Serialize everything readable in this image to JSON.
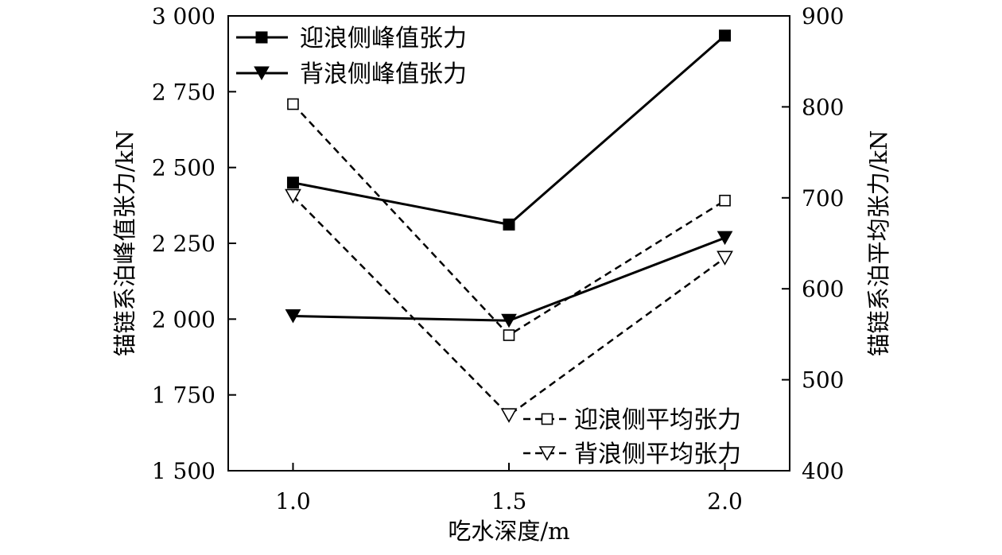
{
  "chart_data": {
    "type": "line",
    "xlabel": "吃水深度/m",
    "ylabel_left": "锚链系泊峰值张力/kN",
    "ylabel_right": "锚链系泊平均张力/kN",
    "x": [
      1.0,
      1.5,
      2.0
    ],
    "x_ticks": [
      "1.0",
      "1.5",
      "2.0"
    ],
    "xlim": [
      0.85,
      2.15
    ],
    "ylim_left": [
      1500,
      3000
    ],
    "ylim_right": [
      400,
      900
    ],
    "y_ticks_left": [
      {
        "value": 1500,
        "label": "1 500"
      },
      {
        "value": 1750,
        "label": "1 750"
      },
      {
        "value": 2000,
        "label": "2 000"
      },
      {
        "value": 2250,
        "label": "2 250"
      },
      {
        "value": 2500,
        "label": "2 500"
      },
      {
        "value": 2750,
        "label": "2 750"
      },
      {
        "value": 3000,
        "label": "3 000"
      }
    ],
    "y_ticks_right": [
      {
        "value": 400,
        "label": "400"
      },
      {
        "value": 500,
        "label": "500"
      },
      {
        "value": 600,
        "label": "600"
      },
      {
        "value": 700,
        "label": "700"
      },
      {
        "value": 800,
        "label": "800"
      },
      {
        "value": 900,
        "label": "900"
      }
    ],
    "series": [
      {
        "name": "迎浪侧峰值张力",
        "axis": "left",
        "values": [
          2450,
          2312,
          2935
        ],
        "marker": "square-filled",
        "line": "solid",
        "color": "#000000"
      },
      {
        "name": "背浪侧峰值张力",
        "axis": "left",
        "values": [
          2010,
          1995,
          2268
        ],
        "marker": "triangle-down-filled",
        "line": "solid",
        "color": "#000000"
      },
      {
        "name": "迎浪侧平均张力",
        "axis": "right",
        "values": [
          803,
          549,
          697
        ],
        "marker": "square-open",
        "line": "dashed",
        "color": "#000000"
      },
      {
        "name": "背浪侧平均张力",
        "axis": "right",
        "values": [
          702,
          461,
          634
        ],
        "marker": "triangle-down-open",
        "line": "dashed",
        "color": "#000000"
      }
    ],
    "legends": [
      {
        "placement": "top-left",
        "items": [
          "迎浪侧峰值张力",
          "背浪侧峰值张力"
        ]
      },
      {
        "placement": "bottom-right",
        "items": [
          "迎浪侧平均张力",
          "背浪侧平均张力"
        ]
      }
    ],
    "grid": false
  }
}
